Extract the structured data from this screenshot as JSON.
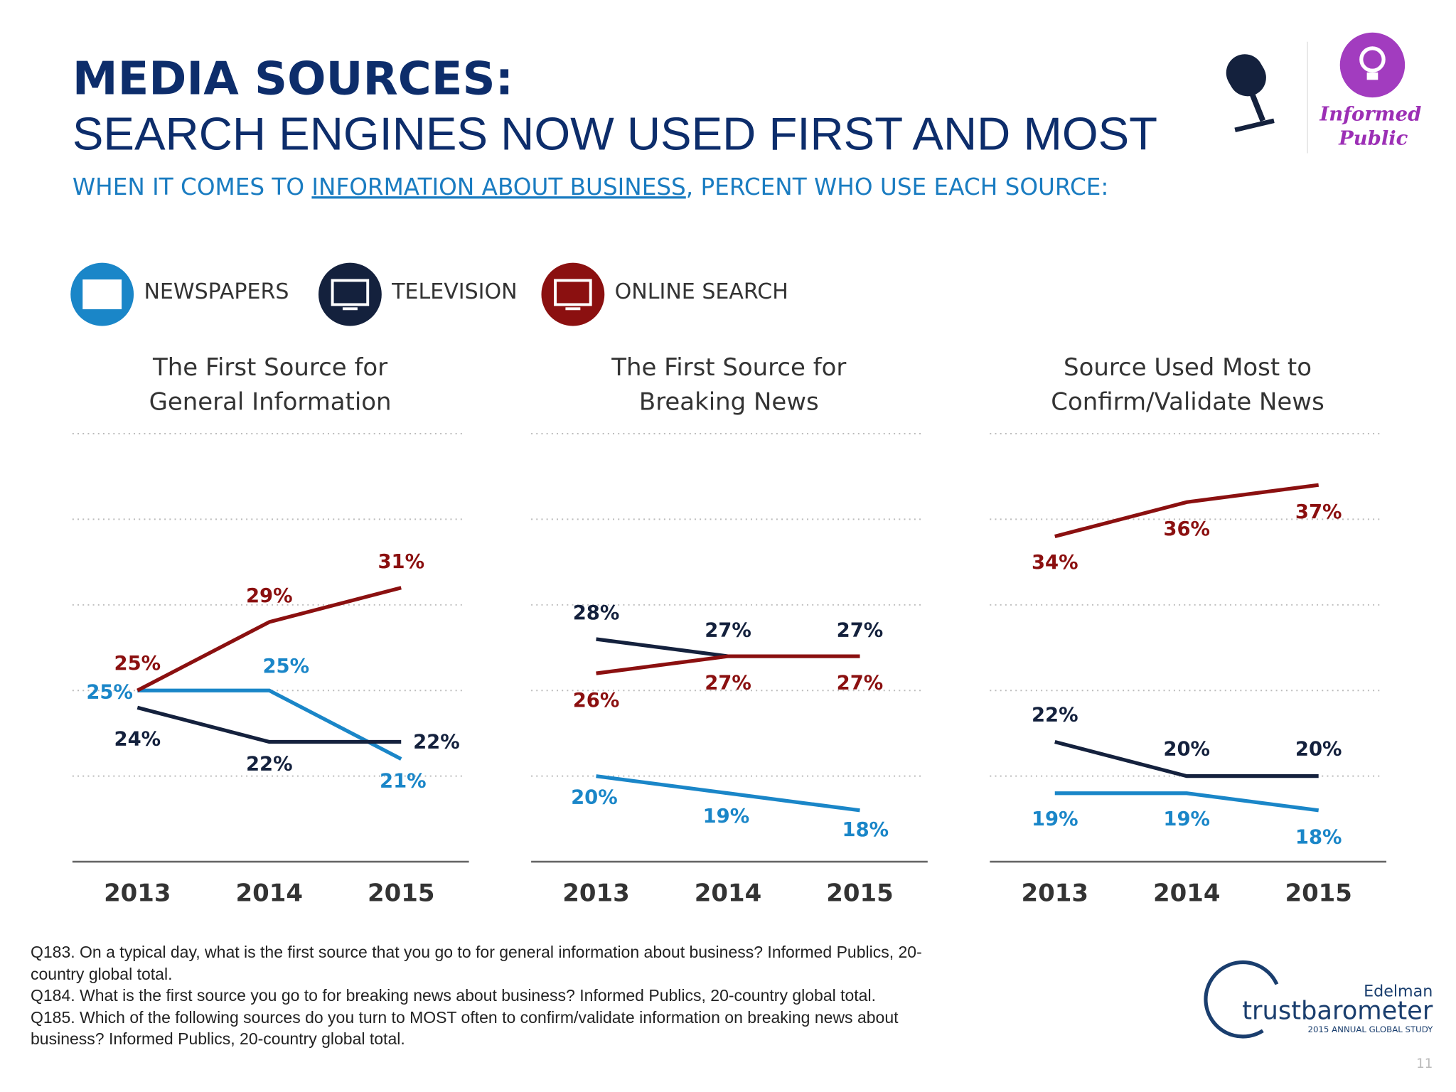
{
  "header": {
    "title": "MEDIA SOURCES:",
    "headline": "SEARCH ENGINES NOW USED FIRST AND MOST",
    "subtitle": [
      "WHEN IT COMES TO ",
      "INFORMATION ABOUT BUSINESS",
      ", PERCENT WHO USE EACH SOURCE:"
    ]
  },
  "badge": [
    "Informed",
    "Public"
  ],
  "legend": [
    {
      "name": "NEWSPAPERS",
      "color": "#1a86c8"
    },
    {
      "name": "TELEVISION",
      "color": "#14213d"
    },
    {
      "name": "ONLINE SEARCH",
      "color": "#8b1010"
    }
  ],
  "chart_data": [
    {
      "type": "line",
      "title": [
        "The First Source for",
        "General Information"
      ],
      "categories": [
        "2013",
        "2014",
        "2015"
      ],
      "ylim": [
        15,
        40
      ],
      "yticks": [
        20,
        25,
        30,
        35,
        40
      ],
      "grid": true,
      "series": [
        {
          "color": "#1a86c8",
          "values": [
            25,
            25,
            21
          ],
          "value_labels": [
            "25%",
            "25%",
            "21%"
          ]
        },
        {
          "color": "#14213d",
          "values": [
            24,
            22,
            22
          ],
          "value_labels": [
            "24%",
            "22%",
            "22%"
          ]
        },
        {
          "color": "#8b1010",
          "values": [
            25,
            29,
            31
          ],
          "value_labels": [
            "25%",
            "29%",
            "31%"
          ]
        }
      ]
    },
    {
      "type": "line",
      "title": [
        "The First Source for",
        "Breaking News"
      ],
      "categories": [
        "2013",
        "2014",
        "2015"
      ],
      "ylim": [
        15,
        40
      ],
      "yticks": [
        20,
        25,
        30,
        35,
        40
      ],
      "grid": true,
      "series": [
        {
          "color": "#1a86c8",
          "values": [
            20,
            19,
            18
          ],
          "value_labels": [
            "20%",
            "19%",
            "18%"
          ]
        },
        {
          "color": "#14213d",
          "values": [
            28,
            27,
            27
          ],
          "value_labels": [
            "28%",
            "27%",
            "27%"
          ]
        },
        {
          "color": "#8b1010",
          "values": [
            26,
            27,
            27
          ],
          "value_labels": [
            "26%",
            "27%",
            "27%"
          ]
        }
      ]
    },
    {
      "type": "line",
      "title": [
        "Source Used Most to",
        "Confirm/Validate News"
      ],
      "categories": [
        "2013",
        "2014",
        "2015"
      ],
      "ylim": [
        15,
        40
      ],
      "yticks": [
        20,
        25,
        30,
        35,
        40
      ],
      "grid": true,
      "series": [
        {
          "color": "#1a86c8",
          "values": [
            19,
            19,
            18
          ],
          "value_labels": [
            "19%",
            "19%",
            "18%"
          ]
        },
        {
          "color": "#14213d",
          "values": [
            22,
            20,
            20
          ],
          "value_labels": [
            "22%",
            "20%",
            "20%"
          ]
        },
        {
          "color": "#8b1010",
          "values": [
            34,
            36,
            37
          ],
          "value_labels": [
            "34%",
            "36%",
            "37%"
          ]
        }
      ]
    }
  ],
  "footnotes": [
    "Q183. On a typical day, what is the first source that you go to for general information about business? Informed Publics, 20-country global total.",
    "Q184. What is the first source you go to for breaking news about business? Informed Publics, 20-country global total.",
    "Q185. Which of the following sources do you turn to MOST often to confirm/validate information on breaking news about business? Informed Publics, 20-country global total."
  ],
  "logo": {
    "brand": "Edelman",
    "name": "trustbarometer",
    "study": "2015 ANNUAL GLOBAL STUDY"
  },
  "page_number": "11"
}
